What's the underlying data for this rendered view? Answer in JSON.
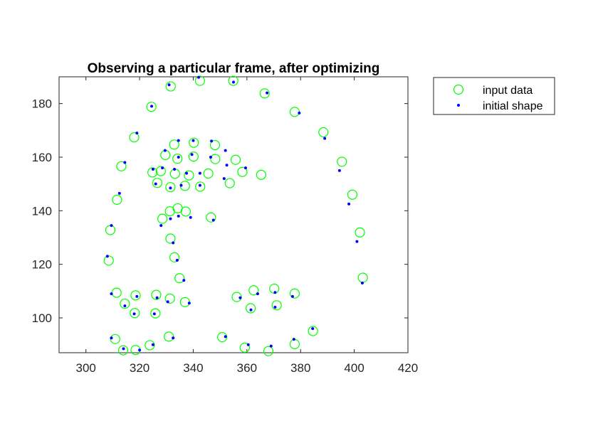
{
  "chart_data": {
    "type": "scatter",
    "title": "Observing a particular frame, after optimizing",
    "xlabel": "",
    "ylabel": "",
    "xlim": [
      290,
      420
    ],
    "ylim": [
      87,
      190
    ],
    "x_ticks": [
      300,
      320,
      340,
      360,
      380,
      400,
      420
    ],
    "y_ticks": [
      100,
      120,
      140,
      160,
      180
    ],
    "grid": false,
    "legend_position": "outside-top-right",
    "legend": [
      {
        "label": "input data",
        "marker": "open-circle",
        "color": "#00ff00"
      },
      {
        "label": "initial shape",
        "marker": "dot",
        "color": "#0000ff"
      }
    ],
    "series": [
      {
        "name": "input data",
        "marker": "open-circle",
        "color": "#00ff00",
        "points": [
          [
            331.6,
            186.4
          ],
          [
            342.5,
            188.5
          ],
          [
            354.9,
            188.5
          ],
          [
            366.6,
            183.8
          ],
          [
            324.4,
            178.8
          ],
          [
            377.8,
            176.9
          ],
          [
            388.5,
            169.3
          ],
          [
            318.0,
            167.4
          ],
          [
            340.2,
            165.4
          ],
          [
            348.1,
            164.5
          ],
          [
            332.9,
            164.7
          ],
          [
            329.6,
            160.8
          ],
          [
            340.1,
            160.2
          ],
          [
            334.1,
            159.4
          ],
          [
            348.2,
            159.3
          ],
          [
            355.8,
            159.0
          ],
          [
            395.4,
            158.3
          ],
          [
            313.2,
            156.6
          ],
          [
            324.8,
            154.3
          ],
          [
            327.9,
            154.8
          ],
          [
            333.2,
            153.8
          ],
          [
            338.4,
            153.2
          ],
          [
            345.6,
            153.9
          ],
          [
            358.3,
            154.5
          ],
          [
            365.3,
            153.4
          ],
          [
            326.6,
            150.4
          ],
          [
            336.9,
            149.3
          ],
          [
            331.5,
            148.8
          ],
          [
            342.6,
            149.0
          ],
          [
            353.6,
            150.3
          ],
          [
            399.3,
            146.0
          ],
          [
            311.6,
            144.1
          ],
          [
            334.2,
            140.9
          ],
          [
            331.3,
            139.8
          ],
          [
            337.2,
            139.7
          ],
          [
            328.5,
            137.0
          ],
          [
            346.6,
            137.5
          ],
          [
            309.1,
            132.8
          ],
          [
            402.1,
            131.9
          ],
          [
            331.5,
            129.6
          ],
          [
            308.5,
            121.4
          ],
          [
            333.0,
            122.6
          ],
          [
            334.9,
            114.8
          ],
          [
            403.2,
            115.0
          ],
          [
            311.4,
            109.4
          ],
          [
            318.5,
            108.4
          ],
          [
            326.2,
            108.6
          ],
          [
            331.3,
            107.2
          ],
          [
            336.9,
            105.9
          ],
          [
            356.2,
            107.8
          ],
          [
            362.5,
            110.3
          ],
          [
            370.2,
            110.9
          ],
          [
            377.8,
            109.1
          ],
          [
            314.5,
            105.3
          ],
          [
            318.2,
            101.8
          ],
          [
            325.9,
            101.7
          ],
          [
            361.4,
            103.6
          ],
          [
            371.1,
            104.7
          ],
          [
            384.6,
            95.1
          ],
          [
            310.9,
            92.1
          ],
          [
            323.8,
            89.8
          ],
          [
            330.9,
            93.0
          ],
          [
            350.8,
            92.8
          ],
          [
            377.8,
            90.2
          ],
          [
            313.9,
            87.9
          ],
          [
            318.5,
            88.0
          ],
          [
            359.2,
            88.9
          ],
          [
            368.0,
            87.6
          ]
        ]
      },
      {
        "name": "initial shape",
        "marker": "dot",
        "color": "#0000ff",
        "points": [
          [
            331.0,
            187.0
          ],
          [
            342.0,
            189.8
          ],
          [
            355.0,
            188.0
          ],
          [
            367.5,
            184.0
          ],
          [
            324.5,
            179.0
          ],
          [
            379.5,
            176.5
          ],
          [
            389.0,
            167.0
          ],
          [
            319.0,
            169.0
          ],
          [
            340.0,
            166.2
          ],
          [
            346.8,
            166.0
          ],
          [
            334.5,
            166.2
          ],
          [
            329.5,
            162.5
          ],
          [
            339.5,
            161.0
          ],
          [
            334.5,
            160.0
          ],
          [
            346.5,
            160.0
          ],
          [
            352.0,
            162.5
          ],
          [
            394.5,
            155.0
          ],
          [
            314.5,
            158.0
          ],
          [
            325.0,
            155.5
          ],
          [
            328.5,
            156.0
          ],
          [
            333.0,
            155.5
          ],
          [
            337.5,
            154.0
          ],
          [
            342.5,
            154.0
          ],
          [
            359.5,
            156.0
          ],
          [
            351.5,
            152.0
          ],
          [
            326.0,
            150.0
          ],
          [
            335.5,
            149.5
          ],
          [
            331.5,
            148.5
          ],
          [
            342.5,
            149.5
          ],
          [
            352.5,
            157.0
          ],
          [
            398.0,
            142.5
          ],
          [
            312.5,
            146.5
          ],
          [
            334.5,
            138.0
          ],
          [
            331.5,
            137.0
          ],
          [
            339.0,
            137.5
          ],
          [
            328.0,
            134.5
          ],
          [
            347.5,
            136.5
          ],
          [
            309.5,
            134.5
          ],
          [
            401.0,
            128.5
          ],
          [
            332.5,
            128.0
          ],
          [
            308.0,
            123.0
          ],
          [
            334.0,
            121.5
          ],
          [
            336.5,
            114.0
          ],
          [
            403.0,
            113.0
          ],
          [
            309.5,
            109.0
          ],
          [
            319.0,
            108.0
          ],
          [
            326.5,
            107.5
          ],
          [
            330.5,
            106.0
          ],
          [
            338.5,
            105.5
          ],
          [
            357.5,
            107.5
          ],
          [
            364.0,
            109.0
          ],
          [
            370.5,
            109.5
          ],
          [
            377.0,
            108.0
          ],
          [
            314.5,
            104.5
          ],
          [
            318.0,
            101.5
          ],
          [
            325.5,
            101.5
          ],
          [
            361.5,
            103.0
          ],
          [
            370.5,
            104.0
          ],
          [
            384.5,
            96.0
          ],
          [
            309.5,
            92.5
          ],
          [
            325.0,
            90.0
          ],
          [
            332.5,
            92.5
          ],
          [
            352.0,
            93.0
          ],
          [
            377.5,
            92.0
          ],
          [
            314.0,
            88.5
          ],
          [
            320.0,
            88.0
          ],
          [
            360.5,
            90.0
          ],
          [
            369.0,
            89.5
          ]
        ]
      }
    ]
  }
}
